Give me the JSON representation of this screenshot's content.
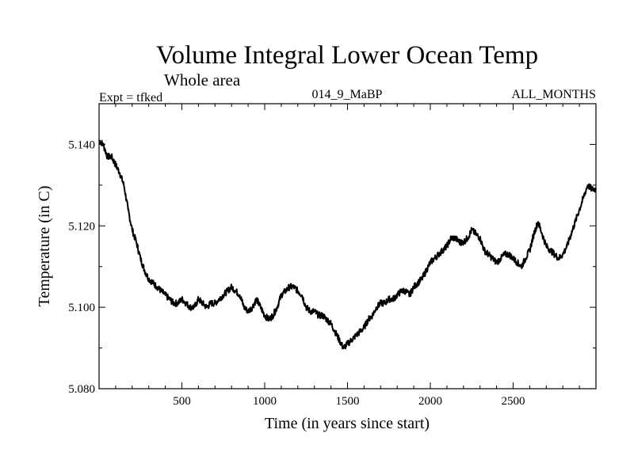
{
  "chart_data": {
    "type": "line",
    "title": "Volume Integral Lower Ocean Temp",
    "subtitle": "Whole area",
    "experiment_label": "Expt = tfked",
    "run_label": "014_9_MaBP",
    "period_label": "ALL_MONTHS",
    "xlabel": "Time (in years since start)",
    "ylabel": "Temperature (in C)",
    "xlim": [
      0,
      3000
    ],
    "ylim": [
      5.08,
      5.15
    ],
    "x_ticks": [
      500,
      1000,
      1500,
      2000,
      2500
    ],
    "x_tick_labels": [
      "500",
      "1000",
      "1500",
      "2000",
      "2500"
    ],
    "y_ticks": [
      5.08,
      5.1,
      5.12,
      5.14
    ],
    "y_tick_labels": [
      "5.080",
      "5.100",
      "5.120",
      "5.140"
    ],
    "grid": false,
    "line_color": "#000000",
    "series": [
      {
        "x": [
          0,
          25,
          50,
          75,
          100,
          125,
          150,
          175,
          200,
          225,
          250,
          275,
          300,
          325,
          350,
          375,
          400,
          425,
          450,
          475,
          500,
          525,
          550,
          575,
          600,
          625,
          650,
          675,
          700,
          725,
          750,
          775,
          800,
          825,
          850,
          875,
          900,
          925,
          950,
          975,
          1000,
          1025,
          1050,
          1075,
          1100,
          1125,
          1150,
          1175,
          1200,
          1225,
          1250,
          1275,
          1300,
          1325,
          1350,
          1375,
          1400,
          1425,
          1450,
          1475,
          1500,
          1525,
          1550,
          1575,
          1600,
          1625,
          1650,
          1675,
          1700,
          1725,
          1750,
          1775,
          1800,
          1825,
          1850,
          1875,
          1900,
          1925,
          1950,
          1975,
          2000,
          2025,
          2050,
          2075,
          2100,
          2125,
          2150,
          2175,
          2200,
          2225,
          2250,
          2275,
          2300,
          2325,
          2350,
          2375,
          2400,
          2425,
          2450,
          2475,
          2500,
          2525,
          2550,
          2575,
          2600,
          2625,
          2650,
          2675,
          2700,
          2725,
          2750,
          2775,
          2800,
          2825,
          2850,
          2875,
          2900,
          2925,
          2950,
          2975,
          3000
        ],
        "values": [
          5.141,
          5.14,
          5.137,
          5.137,
          5.135,
          5.133,
          5.13,
          5.124,
          5.119,
          5.116,
          5.112,
          5.109,
          5.107,
          5.106,
          5.105,
          5.104,
          5.103,
          5.102,
          5.101,
          5.101,
          5.102,
          5.101,
          5.1,
          5.1,
          5.102,
          5.101,
          5.1,
          5.101,
          5.101,
          5.102,
          5.103,
          5.104,
          5.105,
          5.104,
          5.103,
          5.1,
          5.099,
          5.1,
          5.102,
          5.1,
          5.098,
          5.097,
          5.098,
          5.1,
          5.103,
          5.104,
          5.105,
          5.105,
          5.104,
          5.103,
          5.1,
          5.099,
          5.099,
          5.098,
          5.098,
          5.097,
          5.096,
          5.094,
          5.092,
          5.09,
          5.091,
          5.092,
          5.093,
          5.094,
          5.095,
          5.097,
          5.098,
          5.1,
          5.101,
          5.101,
          5.102,
          5.102,
          5.103,
          5.104,
          5.104,
          5.103,
          5.105,
          5.106,
          5.107,
          5.109,
          5.111,
          5.112,
          5.113,
          5.114,
          5.115,
          5.117,
          5.117,
          5.116,
          5.116,
          5.117,
          5.119,
          5.118,
          5.117,
          5.114,
          5.113,
          5.112,
          5.111,
          5.112,
          5.113,
          5.113,
          5.112,
          5.111,
          5.11,
          5.112,
          5.114,
          5.118,
          5.121,
          5.118,
          5.115,
          5.114,
          5.113,
          5.112,
          5.113,
          5.115,
          5.118,
          5.121,
          5.124,
          5.127,
          5.13,
          5.129,
          5.129
        ]
      }
    ]
  }
}
